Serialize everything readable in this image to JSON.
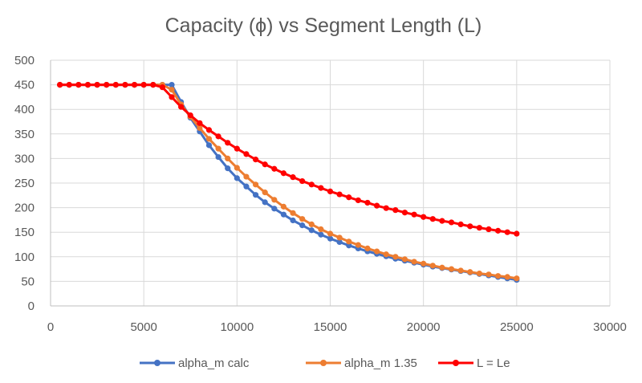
{
  "chart_data": {
    "type": "line",
    "title": "Capacity (ϕ) vs Segment Length (L)",
    "xlabel": "",
    "ylabel": "",
    "xlim": [
      0,
      30000
    ],
    "ylim": [
      0,
      500
    ],
    "xticks": [
      "0",
      "5000",
      "10000",
      "15000",
      "20000",
      "25000",
      "30000"
    ],
    "yticks": [
      "0",
      "50",
      "100",
      "150",
      "200",
      "250",
      "300",
      "350",
      "400",
      "450",
      "500"
    ],
    "grid": true,
    "legend_position": "bottom",
    "series": [
      {
        "name": "alpha_m calc",
        "color": "#4472C4",
        "x": [
          500,
          1000,
          1500,
          2000,
          2500,
          3000,
          3500,
          4000,
          4500,
          5000,
          5500,
          6000,
          6500,
          7000,
          7500,
          8000,
          8500,
          9000,
          9500,
          10000,
          10500,
          11000,
          11500,
          12000,
          12500,
          13000,
          13500,
          14000,
          14500,
          15000,
          15500,
          16000,
          16500,
          17000,
          17500,
          18000,
          18500,
          19000,
          19500,
          20000,
          20500,
          21000,
          21500,
          22000,
          22500,
          23000,
          23500,
          24000,
          24500,
          25000
        ],
        "y": [
          450,
          450,
          450,
          450,
          450,
          450,
          450,
          450,
          450,
          450,
          450,
          450,
          450,
          415,
          383,
          355,
          327,
          303,
          280,
          260,
          243,
          226,
          211,
          198,
          186,
          174,
          164,
          154,
          145,
          137,
          130,
          123,
          117,
          111,
          106,
          101,
          96,
          92,
          88,
          84,
          80,
          77,
          74,
          71,
          68,
          65,
          62,
          59,
          56,
          53
        ]
      },
      {
        "name": "alpha_m 1.35",
        "color": "#ED7D31",
        "x": [
          500,
          1000,
          1500,
          2000,
          2500,
          3000,
          3500,
          4000,
          4500,
          5000,
          5500,
          6000,
          6500,
          7000,
          7500,
          8000,
          8500,
          9000,
          9500,
          10000,
          10500,
          11000,
          11500,
          12000,
          12500,
          13000,
          13500,
          14000,
          14500,
          15000,
          15500,
          16000,
          16500,
          17000,
          17500,
          18000,
          18500,
          19000,
          19500,
          20000,
          20500,
          21000,
          21500,
          22000,
          22500,
          23000,
          23500,
          24000,
          24500,
          25000
        ],
        "y": [
          450,
          450,
          450,
          450,
          450,
          450,
          450,
          450,
          450,
          450,
          450,
          450,
          440,
          410,
          385,
          362,
          340,
          320,
          300,
          281,
          263,
          247,
          231,
          216,
          202,
          189,
          177,
          166,
          156,
          147,
          139,
          131,
          124,
          117,
          111,
          105,
          100,
          95,
          90,
          86,
          82,
          78,
          75,
          72,
          69,
          66,
          64,
          61,
          59,
          56
        ]
      },
      {
        "name": "L = Le",
        "color": "#FF0000",
        "x": [
          500,
          1000,
          1500,
          2000,
          2500,
          3000,
          3500,
          4000,
          4500,
          5000,
          5500,
          6000,
          6500,
          7000,
          7500,
          8000,
          8500,
          9000,
          9500,
          10000,
          10500,
          11000,
          11500,
          12000,
          12500,
          13000,
          13500,
          14000,
          14500,
          15000,
          15500,
          16000,
          16500,
          17000,
          17500,
          18000,
          18500,
          19000,
          19500,
          20000,
          20500,
          21000,
          21500,
          22000,
          22500,
          23000,
          23500,
          24000,
          24500,
          25000
        ],
        "y": [
          450,
          450,
          450,
          450,
          450,
          450,
          450,
          450,
          450,
          450,
          450,
          445,
          425,
          405,
          388,
          372,
          358,
          345,
          332,
          320,
          309,
          298,
          288,
          279,
          270,
          262,
          254,
          247,
          240,
          233,
          227,
          221,
          215,
          210,
          204,
          199,
          195,
          190,
          186,
          181,
          177,
          173,
          170,
          166,
          162,
          159,
          156,
          153,
          150,
          147
        ]
      }
    ]
  }
}
